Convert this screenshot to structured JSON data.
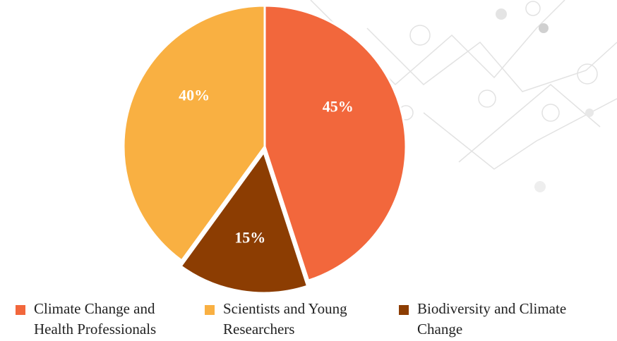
{
  "chart_data": {
    "type": "pie",
    "categories": [
      "Climate Change and Health Professionals",
      "Biodiversity and Climate Change",
      "Scientists and Young Researchers"
    ],
    "values": [
      45,
      15,
      40
    ],
    "value_labels": [
      "45%",
      "15%",
      "40%"
    ],
    "colors": [
      "#f2673c",
      "#8c3d02",
      "#f9b042"
    ],
    "legend_order": [
      0,
      2,
      1
    ]
  }
}
